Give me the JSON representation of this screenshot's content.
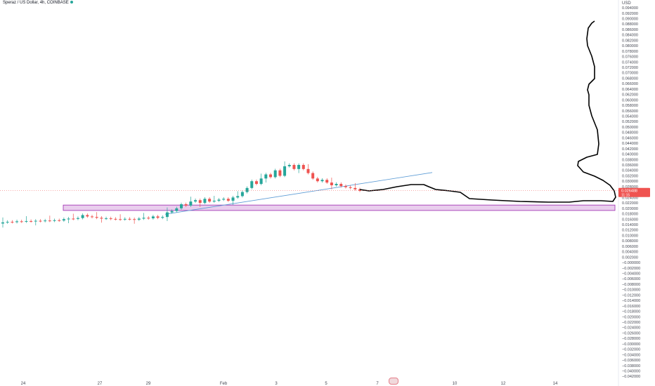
{
  "header": {
    "symbol_line": "Speraz / US Dollar, 4h, COINBASE"
  },
  "price_axis": {
    "currency": "USD",
    "current_price_label": "0.026488",
    "current_price_sub": "11:15",
    "current_price": 0.026488
  },
  "colors": {
    "up": "#26a69a",
    "down": "#ef5350",
    "zone_fill": "#e1bee7",
    "zone_border": "#9c27b0",
    "trendline": "#5b9bd5",
    "projection": "#000000",
    "price_tag": "#ef5350"
  },
  "chart_data": {
    "type": "candlestick",
    "x_tick_labels": [
      "24",
      "27",
      "29",
      "Feb",
      "3",
      "5",
      "7",
      "10",
      "12",
      "14"
    ],
    "y_tick_labels": [
      "0.094000",
      "0.092000",
      "0.090000",
      "0.088000",
      "0.086000",
      "0.084000",
      "0.082000",
      "0.080000",
      "0.078000",
      "0.076000",
      "0.074000",
      "0.072000",
      "0.070000",
      "0.068000",
      "0.066000",
      "0.064000",
      "0.062000",
      "0.060000",
      "0.058000",
      "0.056000",
      "0.054000",
      "0.052000",
      "0.050000",
      "0.048000",
      "0.046000",
      "0.044000",
      "0.042000",
      "0.040000",
      "0.038000",
      "0.036000",
      "0.034000",
      "0.032000",
      "0.030000",
      "0.028000",
      "0.026000",
      "0.024000",
      "0.022000",
      "0.020000",
      "0.018000",
      "0.016000",
      "0.014000",
      "0.012000",
      "0.010000",
      "0.008000",
      "0.006000",
      "0.004000",
      "0.002000",
      "−0.000000",
      "−0.002000",
      "−0.004000",
      "−0.006000",
      "−0.008000",
      "−0.010000",
      "−0.012000",
      "−0.014000",
      "−0.016000",
      "−0.018000",
      "−0.020000",
      "−0.022000",
      "−0.024000",
      "−0.026000",
      "−0.028000",
      "−0.030000",
      "−0.032000",
      "−0.034000",
      "−0.036000",
      "−0.038000",
      "−0.040000",
      "−0.042000"
    ],
    "y_range": [
      -0.0422,
      0.0944
    ],
    "candles_close": [
      0.0148,
      0.015,
      0.0149,
      0.0152,
      0.0151,
      0.0153,
      0.0152,
      0.0154,
      0.0153,
      0.0155,
      0.0154,
      0.0156,
      0.0155,
      0.016,
      0.0162,
      0.0161,
      0.0164,
      0.0175,
      0.017,
      0.0168,
      0.0165,
      0.0162,
      0.0163,
      0.0161,
      0.016,
      0.0159,
      0.0161,
      0.016,
      0.0158,
      0.0162,
      0.0165,
      0.0163,
      0.017,
      0.0165,
      0.0168,
      0.0185,
      0.019,
      0.02,
      0.0215,
      0.021,
      0.0225,
      0.023,
      0.022,
      0.0235,
      0.0225,
      0.0228,
      0.0232,
      0.0235,
      0.0228,
      0.024,
      0.0245,
      0.026,
      0.0275,
      0.03,
      0.029,
      0.031,
      0.0325,
      0.0315,
      0.034,
      0.032,
      0.0355,
      0.036,
      0.0345,
      0.036,
      0.0345,
      0.033,
      0.031,
      0.03,
      0.0305,
      0.0295,
      0.0285,
      0.029,
      0.0282,
      0.0278,
      0.0275,
      0.027,
      0.0265
    ],
    "trendline": {
      "from": [
        0.018,
        "29"
      ],
      "to": [
        0.0332,
        "8"
      ]
    },
    "support_zone": [
      0.0192,
      0.0212
    ],
    "projection_path": "drawn"
  }
}
